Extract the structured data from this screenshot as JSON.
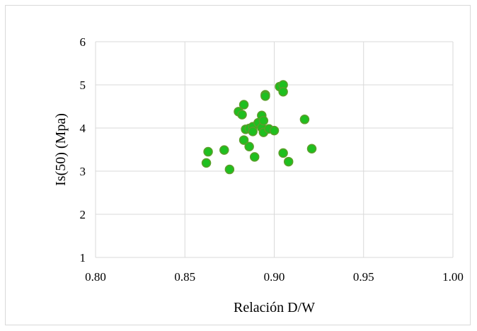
{
  "chart_data": {
    "type": "scatter",
    "title": "",
    "xlabel": "Relación D/W",
    "ylabel": "Is(50) (Mpa)",
    "xlim": [
      0.8,
      1.0
    ],
    "ylim": [
      1,
      6
    ],
    "x_ticks": [
      "0.80",
      "0.85",
      "0.90",
      "0.95",
      "1.00"
    ],
    "y_ticks": [
      "1",
      "2",
      "3",
      "4",
      "5",
      "6"
    ],
    "grid": true,
    "legend": "none",
    "marker_color": "#1fbf1f",
    "marker_edge_color": "#5a9e2a",
    "series": [
      {
        "points": [
          {
            "x": 0.863,
            "y": 3.45
          },
          {
            "x": 0.862,
            "y": 3.19
          },
          {
            "x": 0.872,
            "y": 3.49
          },
          {
            "x": 0.875,
            "y": 3.04
          },
          {
            "x": 0.88,
            "y": 4.38
          },
          {
            "x": 0.882,
            "y": 4.31
          },
          {
            "x": 0.883,
            "y": 4.54
          },
          {
            "x": 0.883,
            "y": 3.72
          },
          {
            "x": 0.884,
            "y": 3.97
          },
          {
            "x": 0.886,
            "y": 3.99
          },
          {
            "x": 0.886,
            "y": 3.57
          },
          {
            "x": 0.888,
            "y": 4.03
          },
          {
            "x": 0.888,
            "y": 3.92
          },
          {
            "x": 0.889,
            "y": 3.33
          },
          {
            "x": 0.891,
            "y": 4.12
          },
          {
            "x": 0.893,
            "y": 4.01
          },
          {
            "x": 0.893,
            "y": 4.29
          },
          {
            "x": 0.894,
            "y": 4.17
          },
          {
            "x": 0.894,
            "y": 3.9
          },
          {
            "x": 0.895,
            "y": 4.77
          },
          {
            "x": 0.895,
            "y": 4.74
          },
          {
            "x": 0.897,
            "y": 3.98
          },
          {
            "x": 0.9,
            "y": 3.94
          },
          {
            "x": 0.903,
            "y": 4.96
          },
          {
            "x": 0.905,
            "y": 5.0
          },
          {
            "x": 0.905,
            "y": 4.84
          },
          {
            "x": 0.905,
            "y": 3.42
          },
          {
            "x": 0.908,
            "y": 3.22
          },
          {
            "x": 0.917,
            "y": 4.2
          },
          {
            "x": 0.921,
            "y": 3.52
          }
        ]
      }
    ]
  }
}
